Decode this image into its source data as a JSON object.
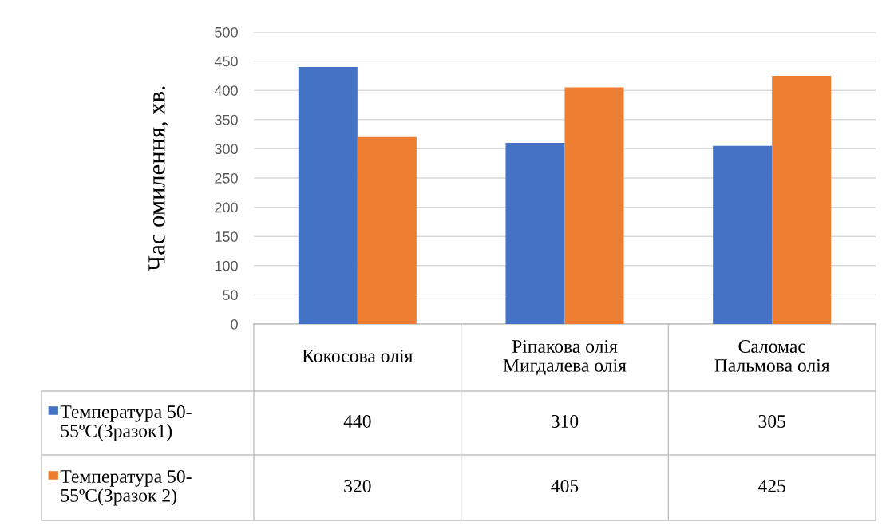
{
  "chart_data": {
    "type": "bar",
    "ylabel": "Час омилення, хв.",
    "categories": [
      "Кокосова олія",
      "Ріпакова олія\nМигдалева олія",
      "Саломас\nПальмова олія"
    ],
    "series": [
      {
        "name": "Температура 50-\n55ºC(Зразок1)",
        "color": "#4472c4",
        "values": [
          440,
          310,
          305
        ]
      },
      {
        "name": "Температура 50-\n55ºC(Зразок 2)",
        "color": "#ed7d31",
        "values": [
          320,
          405,
          425
        ]
      }
    ],
    "ylim": [
      0,
      500
    ],
    "yticks": [
      0,
      50,
      100,
      150,
      200,
      250,
      300,
      350,
      400,
      450,
      500
    ],
    "grid": "y",
    "legend": "bottom",
    "data_labels": true
  }
}
